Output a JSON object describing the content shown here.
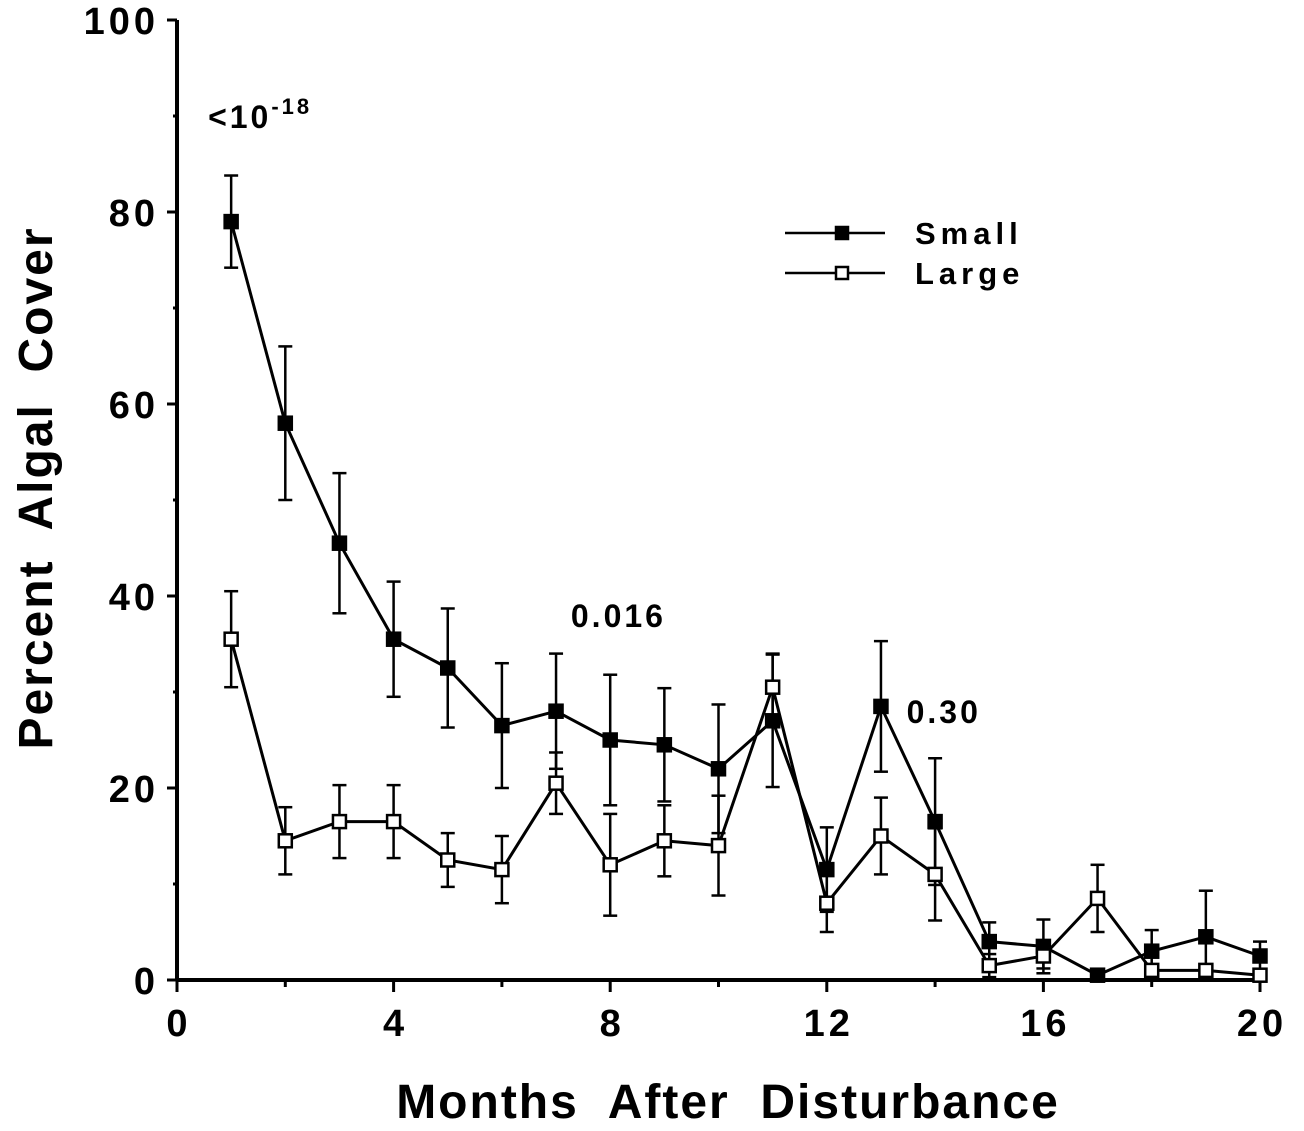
{
  "chart_data": {
    "type": "line",
    "xlabel": "Months  After  Disturbance",
    "ylabel": "Percent  Algal  Cover",
    "xlim": [
      0,
      20
    ],
    "ylim": [
      0,
      100
    ],
    "xticks": [
      0,
      4,
      8,
      12,
      16,
      20
    ],
    "yticks": [
      0,
      20,
      40,
      60,
      80,
      100
    ],
    "grid": false,
    "legend_position": "top-right",
    "series": [
      {
        "name": "Small",
        "marker": "filled-square",
        "x": [
          1,
          2,
          3,
          4,
          5,
          6,
          7,
          8,
          9,
          10,
          11,
          12,
          13,
          14,
          15,
          16,
          17,
          18,
          19,
          20
        ],
        "y": [
          79,
          58,
          45.5,
          35.5,
          32.5,
          26.5,
          28,
          25,
          24.5,
          22,
          27,
          11.5,
          28.5,
          16.5,
          4,
          3.5,
          0.5,
          3,
          4.5,
          2.5
        ],
        "err": [
          4.8,
          8,
          7.3,
          6,
          6.2,
          6.5,
          6,
          6.8,
          5.9,
          6.7,
          6.9,
          4.4,
          6.8,
          6.6,
          2,
          2.8,
          0.3,
          2.2,
          4.8,
          1.5
        ]
      },
      {
        "name": "Large",
        "marker": "open-square",
        "x": [
          1,
          2,
          3,
          4,
          5,
          6,
          7,
          8,
          9,
          10,
          11,
          12,
          13,
          14,
          15,
          16,
          17,
          18,
          19,
          20
        ],
        "y": [
          35.5,
          14.5,
          16.5,
          16.5,
          12.5,
          11.5,
          20.5,
          12,
          14.5,
          14,
          30.5,
          8,
          15,
          11,
          1.5,
          2.5,
          8.5,
          1,
          1,
          0.5
        ],
        "err": [
          5,
          3.5,
          3.8,
          3.8,
          2.8,
          3.5,
          3.2,
          5.3,
          3.7,
          5.2,
          3.5,
          3,
          4,
          4.8,
          1.2,
          1.3,
          3.5,
          0.6,
          0.6,
          0.4
        ]
      }
    ],
    "annotations": [
      {
        "text": "<10",
        "superscript": "-18",
        "x": 0.5,
        "y": 90
      },
      {
        "text": "0.016",
        "x": 7.2,
        "y": 38
      },
      {
        "text": "0.30",
        "x": 13.4,
        "y": 28
      }
    ]
  }
}
